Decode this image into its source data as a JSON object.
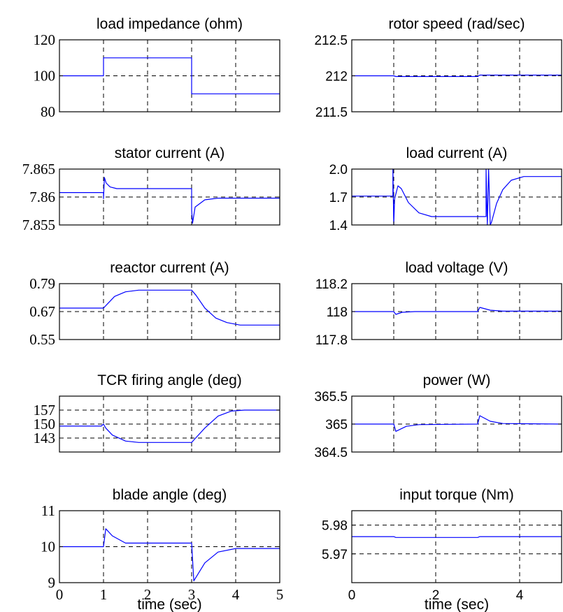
{
  "chart_data": [
    {
      "type": "line",
      "title": "load impedance (ohm)",
      "xlim": [
        0,
        5
      ],
      "ylim": [
        80,
        120
      ],
      "yticks": [
        80,
        100,
        120
      ],
      "ytick_labels": [
        "80",
        "100",
        "120"
      ],
      "grid": true,
      "xticks": [
        1,
        2,
        3,
        4
      ],
      "xtick_labels": [],
      "xlabel": "",
      "series": [
        {
          "color": "#0000ff",
          "points": [
            [
              0,
              100
            ],
            [
              1,
              100
            ],
            [
              1,
              110
            ],
            [
              3,
              110
            ],
            [
              3,
              90
            ],
            [
              5,
              90
            ]
          ]
        }
      ]
    },
    {
      "type": "line",
      "title": "rotor speed (rad/sec)",
      "xlim": [
        0,
        5
      ],
      "ylim": [
        211.5,
        212.5
      ],
      "yticks": [
        211.5,
        212,
        212.5
      ],
      "ytick_labels": [
        "211.5",
        "212",
        "212.5"
      ],
      "grid": true,
      "xticks": [
        1,
        2,
        3,
        4
      ],
      "xtick_labels": [],
      "xlabel": "",
      "series": [
        {
          "color": "#0000ff",
          "points": [
            [
              0,
              212
            ],
            [
              1,
              212
            ],
            [
              1.05,
              211.99
            ],
            [
              3,
              211.99
            ],
            [
              3.05,
              212.01
            ],
            [
              5,
              212.01
            ]
          ]
        }
      ]
    },
    {
      "type": "line",
      "title": "stator current (A)",
      "xlim": [
        0,
        5
      ],
      "ylim": [
        7.855,
        7.865
      ],
      "yticks": [
        7.855,
        7.86,
        7.865
      ],
      "ytick_labels": [
        "7.855",
        "7.86",
        "7.865"
      ],
      "grid": true,
      "xticks": [
        1,
        2,
        3,
        4
      ],
      "xtick_labels": [],
      "xlabel": "",
      "series": [
        {
          "color": "#0000ff",
          "points": [
            [
              0,
              7.8608
            ],
            [
              1,
              7.8608
            ],
            [
              1,
              7.8597
            ],
            [
              1.02,
              7.8635
            ],
            [
              1.06,
              7.8625
            ],
            [
              1.15,
              7.8618
            ],
            [
              1.3,
              7.8615
            ],
            [
              3,
              7.8615
            ],
            [
              3,
              7.8577
            ],
            [
              3.02,
              7.8553
            ],
            [
              3.08,
              7.8582
            ],
            [
              3.3,
              7.8595
            ],
            [
              3.6,
              7.8598
            ],
            [
              5,
              7.8598
            ]
          ]
        }
      ]
    },
    {
      "type": "line",
      "title": "load current (A)",
      "xlim": [
        0,
        5
      ],
      "ylim": [
        1.4,
        2.0
      ],
      "yticks": [
        1.4,
        1.7,
        2.0
      ],
      "ytick_labels": [
        "1.4",
        "1.7",
        "2.0"
      ],
      "grid": true,
      "xticks": [
        1,
        2,
        3,
        4
      ],
      "xtick_labels": [],
      "xlabel": "",
      "series": [
        {
          "color": "#0000ff",
          "points": [
            [
              0,
              1.71
            ],
            [
              0.98,
              1.71
            ],
            [
              0.98,
              2.0
            ],
            [
              1.0,
              1.4
            ],
            [
              1.02,
              1.68
            ],
            [
              1.1,
              1.82
            ],
            [
              1.18,
              1.79
            ],
            [
              1.35,
              1.64
            ],
            [
              1.6,
              1.53
            ],
            [
              1.9,
              1.49
            ],
            [
              2.8,
              1.49
            ],
            [
              3.2,
              1.49
            ],
            [
              3.2,
              2.0
            ],
            [
              3.23,
              1.4
            ],
            [
              3.26,
              2.0
            ],
            [
              3.3,
              1.4
            ],
            [
              3.33,
              1.43
            ],
            [
              3.45,
              1.63
            ],
            [
              3.6,
              1.78
            ],
            [
              3.8,
              1.88
            ],
            [
              4.1,
              1.92
            ],
            [
              5,
              1.92
            ]
          ]
        }
      ]
    },
    {
      "type": "line",
      "title": "reactor current (A)",
      "xlim": [
        0,
        5
      ],
      "ylim": [
        0.55,
        0.79
      ],
      "yticks": [
        0.55,
        0.67,
        0.79
      ],
      "ytick_labels": [
        "0.55",
        "0.67",
        "0.79"
      ],
      "grid": true,
      "xticks": [
        1,
        2,
        3,
        4
      ],
      "xtick_labels": [],
      "xlabel": "",
      "series": [
        {
          "color": "#0000ff",
          "points": [
            [
              0,
              0.685
            ],
            [
              1,
              0.685
            ],
            [
              1.1,
              0.705
            ],
            [
              1.25,
              0.735
            ],
            [
              1.5,
              0.755
            ],
            [
              1.8,
              0.762
            ],
            [
              3,
              0.762
            ],
            [
              3.1,
              0.74
            ],
            [
              3.3,
              0.685
            ],
            [
              3.55,
              0.642
            ],
            [
              3.8,
              0.623
            ],
            [
              4.1,
              0.612
            ],
            [
              5,
              0.612
            ]
          ]
        }
      ]
    },
    {
      "type": "line",
      "title": "load voltage (V)",
      "xlim": [
        0,
        5
      ],
      "ylim": [
        117.8,
        118.2
      ],
      "yticks": [
        117.8,
        118,
        118.2
      ],
      "ytick_labels": [
        "117.8",
        "118",
        "118.2"
      ],
      "grid": true,
      "xticks": [
        1,
        2,
        3,
        4
      ],
      "xtick_labels": [],
      "xlabel": "",
      "series": [
        {
          "color": "#0000ff",
          "points": [
            [
              0,
              118
            ],
            [
              1,
              118
            ],
            [
              1.05,
              117.98
            ],
            [
              1.2,
              117.995
            ],
            [
              1.5,
              118
            ],
            [
              3,
              118
            ],
            [
              3.05,
              118.03
            ],
            [
              3.3,
              118.01
            ],
            [
              3.6,
              118.003
            ],
            [
              5,
              118.003
            ]
          ]
        }
      ]
    },
    {
      "type": "line",
      "title": "TCR firing angle (deg)",
      "xlim": [
        0,
        5
      ],
      "ylim": [
        136,
        164
      ],
      "yticks": [
        143,
        150,
        157
      ],
      "ytick_labels": [
        "143",
        "150",
        "157"
      ],
      "grid": true,
      "xticks": [
        1,
        2,
        3,
        4
      ],
      "xtick_labels": [],
      "xlabel": "",
      "series": [
        {
          "color": "#0000ff",
          "points": [
            [
              0,
              149
            ],
            [
              0.95,
              149
            ],
            [
              1.0,
              150
            ],
            [
              1.05,
              148
            ],
            [
              1.2,
              144.5
            ],
            [
              1.5,
              141.5
            ],
            [
              1.8,
              140.8
            ],
            [
              3,
              140.8
            ],
            [
              3.05,
              142
            ],
            [
              3.3,
              148
            ],
            [
              3.6,
              154
            ],
            [
              3.9,
              156.5
            ],
            [
              4.2,
              157
            ],
            [
              5,
              157
            ]
          ]
        }
      ]
    },
    {
      "type": "line",
      "title": "power (W)",
      "xlim": [
        0,
        5
      ],
      "ylim": [
        364.5,
        365.5
      ],
      "yticks": [
        364.5,
        365,
        365.5
      ],
      "ytick_labels": [
        "364.5",
        "365",
        "365.5"
      ],
      "grid": true,
      "xticks": [
        1,
        2,
        3,
        4
      ],
      "xtick_labels": [],
      "xlabel": "",
      "series": [
        {
          "color": "#0000ff",
          "points": [
            [
              0,
              365
            ],
            [
              1,
              365
            ],
            [
              1.05,
              364.87
            ],
            [
              1.3,
              364.96
            ],
            [
              1.6,
              364.99
            ],
            [
              3,
              365
            ],
            [
              3.05,
              365.15
            ],
            [
              3.3,
              365.05
            ],
            [
              3.6,
              365.01
            ],
            [
              5,
              365
            ]
          ]
        }
      ]
    },
    {
      "type": "line",
      "title": "blade angle (deg)",
      "xlim": [
        0,
        5
      ],
      "ylim": [
        9,
        11
      ],
      "yticks": [
        9,
        10,
        11
      ],
      "ytick_labels": [
        "9",
        "10",
        "11"
      ],
      "grid": true,
      "xticks": [
        0,
        1,
        2,
        3,
        4,
        5
      ],
      "xtick_labels": [
        "0",
        "1",
        "2",
        "3",
        "4",
        "5"
      ],
      "xlabel": "time (sec)",
      "series": [
        {
          "color": "#0000ff",
          "points": [
            [
              0,
              10
            ],
            [
              1,
              10
            ],
            [
              1.05,
              10.5
            ],
            [
              1.2,
              10.3
            ],
            [
              1.5,
              10.1
            ],
            [
              3,
              10.1
            ],
            [
              3.05,
              9.05
            ],
            [
              3.3,
              9.55
            ],
            [
              3.6,
              9.85
            ],
            [
              4,
              9.95
            ],
            [
              5,
              9.95
            ]
          ]
        }
      ]
    },
    {
      "type": "line",
      "title": "input torque (Nm)",
      "xlim": [
        0,
        5
      ],
      "ylim": [
        5.96,
        5.985
      ],
      "yticks": [
        5.97,
        5.98
      ],
      "ytick_labels": [
        "5.97",
        "5.98"
      ],
      "grid": true,
      "xticks": [
        0,
        2,
        4
      ],
      "xtick_labels": [
        "0",
        "2",
        "4"
      ],
      "xlabel": "time (sec)",
      "series": [
        {
          "color": "#0000ff",
          "points": [
            [
              0,
              5.976
            ],
            [
              1,
              5.976
            ],
            [
              1.05,
              5.9757
            ],
            [
              3,
              5.9757
            ],
            [
              3.05,
              5.976
            ],
            [
              5,
              5.976
            ]
          ]
        }
      ]
    }
  ]
}
